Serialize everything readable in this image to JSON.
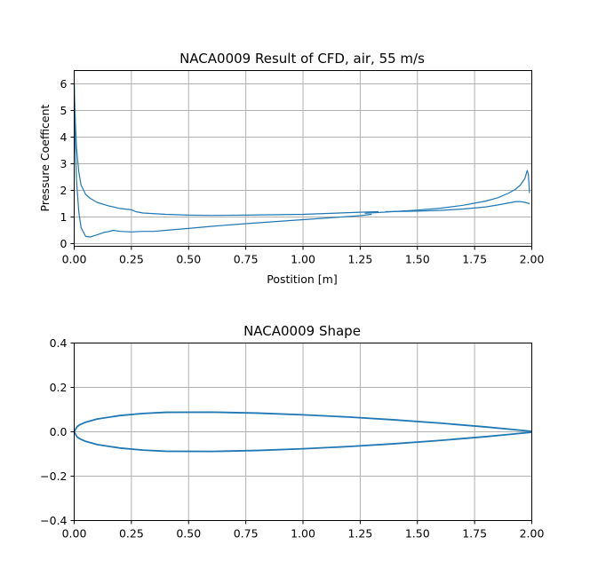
{
  "chart_data": [
    {
      "type": "line",
      "title": "NACA0009 Result of CFD, air, 55 m/s",
      "xlabel": "Postition [m]",
      "ylabel": "Pressure Coefficent",
      "xlim": [
        0,
        2.0
      ],
      "ylim": [
        -0.1,
        6.5
      ],
      "xticks": [
        "0.00",
        "0.25",
        "0.50",
        "0.75",
        "1.00",
        "1.25",
        "1.50",
        "1.75",
        "2.00"
      ],
      "yticks": [
        "0",
        "1",
        "2",
        "3",
        "4",
        "5",
        "6"
      ],
      "grid": true,
      "series": [
        {
          "color": "#1f77b4",
          "x": [
            0.0,
            0.005,
            0.01,
            0.02,
            0.03,
            0.05,
            0.07,
            0.1,
            0.15,
            0.2,
            0.25,
            0.27,
            0.3,
            0.4,
            0.5,
            0.6,
            0.75,
            1.0,
            1.25,
            1.33
          ],
          "y": [
            6.0,
            4.6,
            3.6,
            2.7,
            2.2,
            1.85,
            1.7,
            1.55,
            1.42,
            1.32,
            1.27,
            1.2,
            1.15,
            1.1,
            1.07,
            1.06,
            1.07,
            1.1,
            1.18,
            1.2
          ]
        },
        {
          "color": "#1f77b4",
          "x": [
            0.0,
            0.005,
            0.01,
            0.02,
            0.03,
            0.05,
            0.07,
            0.1,
            0.13,
            0.15,
            0.17,
            0.2,
            0.25,
            0.3,
            0.35,
            0.4,
            0.5,
            0.6,
            0.75,
            1.0,
            1.25,
            1.3
          ],
          "y": [
            6.0,
            3.6,
            2.4,
            1.2,
            0.6,
            0.27,
            0.25,
            0.33,
            0.42,
            0.45,
            0.5,
            0.46,
            0.44,
            0.46,
            0.46,
            0.5,
            0.57,
            0.65,
            0.75,
            0.9,
            1.05,
            1.1
          ]
        },
        {
          "color": "#1f77b4",
          "x": [
            1.27,
            1.35,
            1.5,
            1.6,
            1.7,
            1.75,
            1.8,
            1.85,
            1.9,
            1.93,
            1.95,
            1.97,
            1.98,
            1.985,
            1.99
          ],
          "y": [
            1.14,
            1.18,
            1.26,
            1.33,
            1.44,
            1.52,
            1.6,
            1.72,
            1.9,
            2.05,
            2.2,
            2.45,
            2.75,
            2.6,
            1.9
          ]
        },
        {
          "color": "#1f77b4",
          "x": [
            1.36,
            1.5,
            1.6,
            1.7,
            1.8,
            1.85,
            1.9,
            1.93,
            1.95,
            1.97,
            1.99
          ],
          "y": [
            1.2,
            1.22,
            1.25,
            1.3,
            1.38,
            1.45,
            1.53,
            1.58,
            1.58,
            1.55,
            1.5
          ]
        }
      ]
    },
    {
      "type": "line",
      "title": "NACA0009 Shape",
      "xlabel": "",
      "ylabel": "",
      "xlim": [
        0,
        2.0
      ],
      "ylim": [
        -0.4,
        0.4
      ],
      "xticks": [
        "0.00",
        "0.25",
        "0.50",
        "0.75",
        "1.00",
        "1.25",
        "1.50",
        "1.75",
        "2.00"
      ],
      "yticks": [
        "−0.4",
        "−0.2",
        "0.0",
        "0.2",
        "0.4"
      ],
      "grid": true,
      "series": [
        {
          "color": "#1f77b4",
          "x": [
            2.0,
            1.9,
            1.8,
            1.6,
            1.4,
            1.2,
            1.0,
            0.8,
            0.6,
            0.4,
            0.3,
            0.2,
            0.1,
            0.05,
            0.025,
            0.0125,
            0.0,
            0.0125,
            0.025,
            0.05,
            0.1,
            0.2,
            0.3,
            0.4,
            0.6,
            0.8,
            1.0,
            1.2,
            1.4,
            1.6,
            1.8,
            1.9,
            2.0
          ],
          "y": [
            0.0019,
            0.0121,
            0.0217,
            0.0389,
            0.0538,
            0.0664,
            0.0765,
            0.0843,
            0.0886,
            0.0878,
            0.0826,
            0.0732,
            0.0576,
            0.0431,
            0.0318,
            0.0232,
            0.0,
            -0.0232,
            -0.0318,
            -0.0431,
            -0.0576,
            -0.0732,
            -0.0826,
            -0.0878,
            -0.0886,
            -0.0843,
            -0.0765,
            -0.0664,
            -0.0538,
            -0.0389,
            -0.0217,
            -0.0121,
            -0.0019
          ]
        }
      ]
    }
  ]
}
